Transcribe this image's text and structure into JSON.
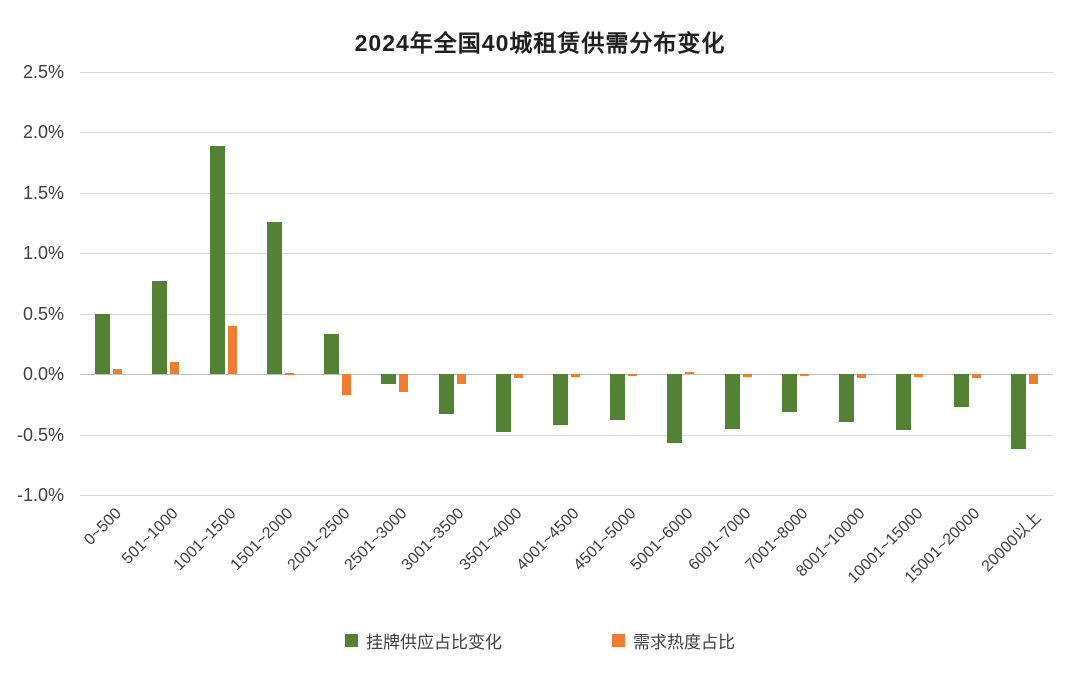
{
  "title": "2024年全国40城租赁供需分布变化",
  "chart_data": {
    "type": "bar",
    "title": "2024年全国40城租赁供需分布变化",
    "unit": "%",
    "grid": true,
    "legend_position": "bottom",
    "xlabel": "",
    "ylabel": "",
    "ylim": [
      -1.0,
      2.5
    ],
    "y_ticks": [
      {
        "value": 2.5,
        "label": "2.5%"
      },
      {
        "value": 2.0,
        "label": "2.0%"
      },
      {
        "value": 1.5,
        "label": "1.5%"
      },
      {
        "value": 1.0,
        "label": "1.0%"
      },
      {
        "value": 0.5,
        "label": "0.5%"
      },
      {
        "value": 0.0,
        "label": "0.0%"
      },
      {
        "value": -0.5,
        "label": "-0.5%"
      },
      {
        "value": -1.0,
        "label": "-1.0%"
      }
    ],
    "categories": [
      "0~500",
      "501~1000",
      "1001~1500",
      "1501~2000",
      "2001~2500",
      "2501~3000",
      "3001~3500",
      "3501~4000",
      "4001~4500",
      "4501~5000",
      "5001~6000",
      "6001~7000",
      "7001~8000",
      "8001~10000",
      "10001~15000",
      "15001~20000",
      "20000以上"
    ],
    "series": [
      {
        "id": "supply",
        "name": "挂牌供应占比变化",
        "color": "#548235",
        "values": [
          0.5,
          0.77,
          1.89,
          1.26,
          0.33,
          -0.08,
          -0.33,
          -0.48,
          -0.42,
          -0.38,
          -0.57,
          -0.45,
          -0.31,
          -0.4,
          -0.46,
          -0.27,
          -0.62
        ]
      },
      {
        "id": "demand",
        "name": "需求热度占比",
        "color": "#ED7D31",
        "values": [
          0.04,
          0.1,
          0.4,
          0.01,
          -0.17,
          -0.15,
          -0.08,
          -0.03,
          -0.02,
          -0.01,
          0.02,
          -0.02,
          -0.01,
          -0.03,
          -0.02,
          -0.03,
          -0.08
        ]
      }
    ]
  }
}
